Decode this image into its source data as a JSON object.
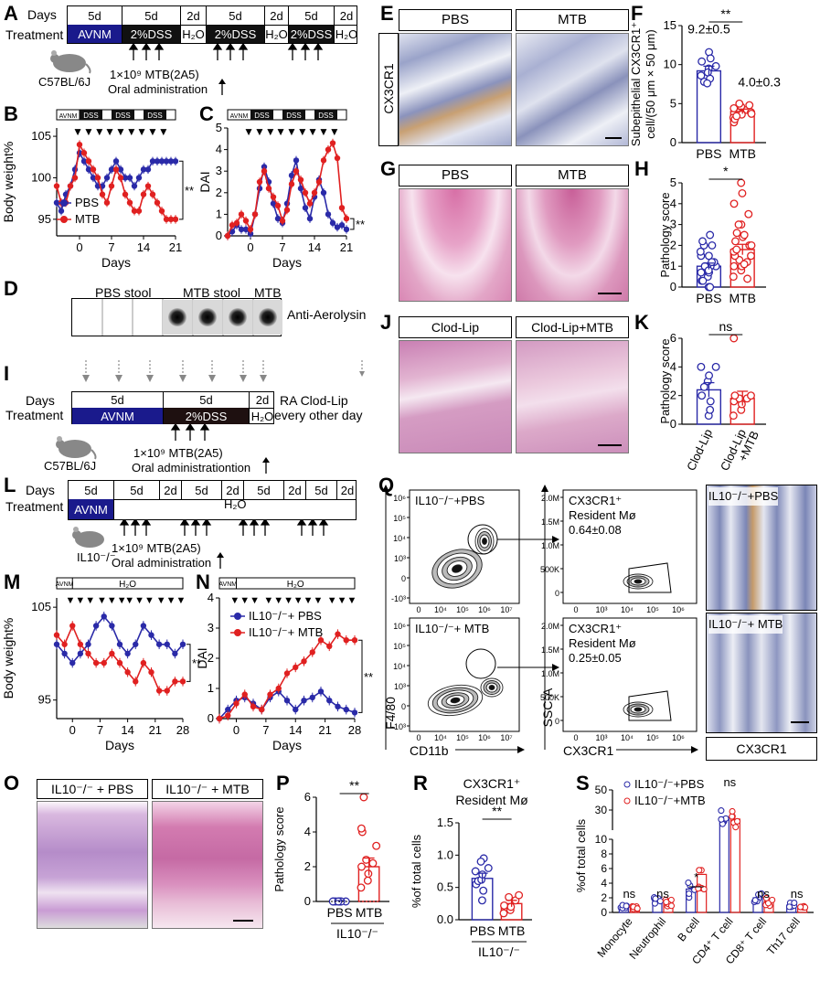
{
  "panels": {
    "A": "A",
    "B": "B",
    "C": "C",
    "D": "D",
    "E": "E",
    "F": "F",
    "G": "G",
    "H": "H",
    "I": "I",
    "J": "J",
    "K": "K",
    "L": "L",
    "M": "M",
    "N": "N",
    "O": "O",
    "P": "P",
    "Q": "Q",
    "R": "R",
    "S": "S"
  },
  "common": {
    "days": "Days",
    "treatment": "Treatment",
    "avnm": "AVNM",
    "dss2": "2%DSS",
    "h2o": "H₂O",
    "d5": "5d",
    "d2": "2d",
    "c57": "C57BL/6J",
    "mtb_dose": "1×10⁹ MTB(2A5)",
    "oral": "Oral administration",
    "oral_tion": "Oral administrationtion",
    "il10": "IL10⁻/⁻",
    "pbs": "PBS",
    "mtb": "MTB",
    "dss": "DSS",
    "ns": "ns",
    "sig2": "**",
    "sig1": "*"
  },
  "panelA": {
    "cells": [
      "5d",
      "5d",
      "2d",
      "5d",
      "2d",
      "5d",
      "2d"
    ],
    "treat": [
      "AVNM",
      "2%DSS",
      "H₂O",
      "2%DSS",
      "H₂O",
      "2%DSS",
      "H₂O"
    ]
  },
  "panelB": {
    "ylabel": "Body weight%",
    "xlabel": "Days",
    "yticks": [
      "95",
      "100",
      "105"
    ],
    "xticks": [
      "0",
      "7",
      "14",
      "21"
    ],
    "legend": [
      "PBS",
      "MTB"
    ],
    "sig": "**"
  },
  "panelC": {
    "ylabel": "DAI",
    "xlabel": "Days",
    "yticks": [
      "0",
      "1",
      "2",
      "3",
      "4",
      "5"
    ],
    "xticks": [
      "0",
      "7",
      "14",
      "21"
    ],
    "sig": "**"
  },
  "panelD": {
    "pbs_stool": "PBS stool",
    "mtb_stool": "MTB stool",
    "mtb": "MTB",
    "antibody": "Anti-Aerolysin"
  },
  "panelE": {
    "left": "PBS",
    "right": "MTB",
    "side": "CX3CR1"
  },
  "panelF": {
    "ylabel1": "Subepithelial CX3CR1⁺",
    "ylabel2": "cell/(50 μm × 50 μm)",
    "pbs_val": "9.2±0.5",
    "mtb_val": "4.0±0.3",
    "yticks": [
      "0",
      "5",
      "10",
      "15"
    ],
    "cats": [
      "PBS",
      "MTB"
    ],
    "sig": "**"
  },
  "panelG": {
    "left": "PBS",
    "right": "MTB"
  },
  "panelH": {
    "ylabel": "Pathology score",
    "yticks": [
      "0",
      "1",
      "2",
      "3",
      "4",
      "5"
    ],
    "cats": [
      "PBS",
      "MTB"
    ],
    "sig": "*"
  },
  "panelI": {
    "treat": [
      "AVNM",
      "2%DSS",
      "H₂O"
    ],
    "cells": [
      "5d",
      "5d",
      "2d"
    ],
    "ra": "RA Clod-Lip",
    "every": "every other day"
  },
  "panelJ": {
    "left": "Clod-Lip",
    "right": "Clod-Lip+MTB"
  },
  "panelK": {
    "ylabel": "Pathology score",
    "yticks": [
      "0",
      "2",
      "4",
      "6"
    ],
    "cats": [
      "Clod-Lip",
      "Clod-Lip\n+MTB"
    ],
    "cat1": "Clod-Lip",
    "cat2a": "Clod-Lip",
    "cat2b": "+MTB",
    "sig": "ns"
  },
  "panelL": {
    "cells": [
      "5d",
      "5d",
      "2d",
      "5d",
      "2d",
      "5d",
      "2d",
      "5d",
      "2d"
    ],
    "treat": [
      "AVNM",
      "H₂O"
    ]
  },
  "panelM": {
    "ylabel": "Body weight%",
    "xlabel": "Days",
    "yticks": [
      "95",
      "105"
    ],
    "xticks": [
      "0",
      "7",
      "14",
      "21",
      "28"
    ],
    "sig": "**",
    "bar": "H₂O",
    "avnm": "AVNM"
  },
  "panelN": {
    "ylabel": "DAI",
    "xlabel": "Days",
    "yticks": [
      "0",
      "1",
      "2",
      "3",
      "4"
    ],
    "xticks": [
      "0",
      "7",
      "14",
      "21",
      "28"
    ],
    "legend": [
      "IL10⁻/⁻+ PBS",
      "IL10⁻/⁻+ MTB"
    ],
    "sig": "**"
  },
  "panelO": {
    "left": "IL10⁻/⁻ + PBS",
    "right": "IL10⁻/⁻ + MTB"
  },
  "panelP": {
    "ylabel": "Pathology score",
    "yticks": [
      "0",
      "2",
      "4",
      "6"
    ],
    "cats": [
      "PBS",
      "MTB"
    ],
    "group": "IL10⁻/⁻",
    "sig": "**"
  },
  "panelQ": {
    "top_label": "IL10⁻/⁻+PBS",
    "bot_label": "IL10⁻/⁻+ MTB",
    "gate_title": "CX3CR1⁺",
    "gate_sub": "Resident Mø",
    "pbs_val": "0.64±0.08",
    "mtb_val": "0.25±0.05",
    "yaxis": "F4/80",
    "xaxis": "CD11b",
    "yaxis2": "SSC-A",
    "xaxis2": "CX3CR1",
    "ihc_label": "CX3CR1",
    "ticks_left": [
      "10⁶",
      "10⁵",
      "10⁴",
      "10³",
      "0",
      "-10³"
    ],
    "ticks_x": [
      "0",
      "10⁴",
      "10⁵",
      "10⁶",
      "10⁷"
    ],
    "ticks_ssc": [
      "2.0M",
      "1.5M",
      "1.0M",
      "500K",
      "0"
    ],
    "ticks_x2": [
      "0",
      "10³",
      "10⁴",
      "10⁵",
      "10⁶"
    ]
  },
  "panelR": {
    "title1": "CX3CR1⁺",
    "title2": "Resident Mø",
    "ylabel": "%of total cells",
    "yticks": [
      "0.0",
      "0.5",
      "1.0",
      "1.5"
    ],
    "cats": [
      "PBS",
      "MTB"
    ],
    "group": "IL10⁻/⁻",
    "sig": "**"
  },
  "panelS": {
    "ylabel": "%of total cells",
    "yticks": [
      "0",
      "2",
      "4",
      "6",
      "8",
      "10",
      "30",
      "50"
    ],
    "cats": [
      "Monocyte",
      "Neutrophil",
      "B cell",
      "CD4⁺ T cell",
      "CD8⁺ T cell",
      "Th17 cell"
    ],
    "legend": [
      "IL10⁻/⁻+PBS",
      "IL10⁻/⁻+MTB"
    ],
    "sigs": [
      "ns",
      "ns",
      "*",
      "ns",
      "ns",
      "ns"
    ]
  },
  "chart_data": [
    {
      "type": "bar",
      "panel": "F",
      "categories": [
        "PBS",
        "MTB"
      ],
      "values": [
        9.2,
        4.0
      ],
      "ylim": [
        0,
        15
      ],
      "ylabel": "Subepithelial CX3CR1⁺ cell/(50 μm × 50 μm)"
    },
    {
      "type": "bar",
      "panel": "H",
      "categories": [
        "PBS",
        "MTB"
      ],
      "values": [
        1.0,
        1.8
      ],
      "ylim": [
        0,
        5
      ],
      "ylabel": "Pathology score"
    },
    {
      "type": "bar",
      "panel": "K",
      "categories": [
        "Clod-Lip",
        "Clod-Lip+MTB"
      ],
      "values": [
        2.4,
        1.8
      ],
      "ylim": [
        0,
        6
      ],
      "ylabel": "Pathology score"
    },
    {
      "type": "bar",
      "panel": "P",
      "categories": [
        "PBS",
        "MTB"
      ],
      "values": [
        0.0,
        2.0
      ],
      "ylim": [
        0,
        6
      ],
      "ylabel": "Pathology score"
    },
    {
      "type": "bar",
      "panel": "R",
      "categories": [
        "PBS",
        "MTB"
      ],
      "values": [
        0.64,
        0.25
      ],
      "ylim": [
        0,
        1.5
      ],
      "ylabel": "%of total cells"
    },
    {
      "type": "bar",
      "panel": "S",
      "categories": [
        "Monocyte",
        "Neutrophil",
        "B cell",
        "CD4⁺ T cell",
        "CD8⁺ T cell",
        "Th17 cell"
      ],
      "series": [
        {
          "name": "IL10⁻/⁻+PBS",
          "values": [
            0.8,
            1.5,
            3.2,
            23,
            2.0,
            1.0
          ]
        },
        {
          "name": "IL10⁻/⁻+MTB",
          "values": [
            0.7,
            1.3,
            5.2,
            21,
            1.5,
            0.6
          ]
        }
      ]
    },
    {
      "type": "line",
      "panel": "B",
      "x": [
        -5,
        -4,
        -3,
        -2,
        -1,
        0,
        1,
        2,
        3,
        4,
        5,
        6,
        7,
        8,
        9,
        10,
        11,
        12,
        13,
        14,
        15,
        16,
        17,
        18,
        19,
        20,
        21
      ],
      "series": [
        {
          "name": "PBS",
          "values": [
            97,
            96,
            98,
            99,
            101,
            103,
            102,
            101,
            100,
            99,
            99,
            100,
            101,
            102,
            101,
            100,
            100,
            99,
            100,
            101,
            101,
            102,
            102,
            102,
            102,
            102,
            102
          ]
        },
        {
          "name": "MTB",
          "values": [
            99,
            97,
            97,
            99,
            100,
            104,
            103,
            102,
            101,
            100,
            98,
            97,
            99,
            101,
            100,
            98,
            97,
            96,
            96,
            98,
            99,
            98,
            97,
            96,
            95,
            95,
            95
          ]
        }
      ],
      "ylim": [
        95,
        106
      ],
      "ylabel": "Body weight%",
      "xlabel": "Days"
    },
    {
      "type": "line",
      "panel": "C",
      "x": [
        -5,
        -4,
        -3,
        -2,
        -1,
        0,
        1,
        2,
        3,
        4,
        5,
        6,
        7,
        8,
        9,
        10,
        11,
        12,
        13,
        14,
        15,
        16,
        17,
        18,
        19,
        20,
        21
      ],
      "series": [
        {
          "name": "PBS",
          "values": [
            0,
            0.2,
            0.5,
            0.3,
            0.3,
            0.1,
            1.0,
            2.2,
            3.2,
            2.5,
            1.5,
            0.8,
            0.6,
            1.5,
            2.8,
            3.5,
            2.2,
            1.3,
            0.8,
            1.8,
            2.6,
            2.0,
            1.0,
            0.6,
            0.4,
            0.5,
            0.3
          ]
        },
        {
          "name": "MTB",
          "values": [
            0,
            0.5,
            0.6,
            1.0,
            0.7,
            0.3,
            1.0,
            2.5,
            3.0,
            2.2,
            1.8,
            1.4,
            0.7,
            1.2,
            2.4,
            3.0,
            2.6,
            2.0,
            1.5,
            2.0,
            2.5,
            3.5,
            4.0,
            4.3,
            3.6,
            1.3,
            0.8
          ]
        }
      ],
      "ylim": [
        0,
        5
      ],
      "ylabel": "DAI",
      "xlabel": "Days"
    },
    {
      "type": "line",
      "panel": "M",
      "x": [
        -4,
        -2,
        0,
        2,
        4,
        6,
        8,
        10,
        12,
        14,
        16,
        18,
        20,
        22,
        24,
        26,
        28
      ],
      "series": [
        {
          "name": "PBS",
          "values": [
            101,
            100,
            99,
            100,
            101,
            103,
            104,
            103,
            101,
            100,
            101,
            103,
            102,
            101,
            101,
            100,
            101
          ]
        },
        {
          "name": "MTB",
          "values": [
            102,
            101,
            103,
            101,
            100,
            99,
            99,
            100,
            99,
            98,
            97,
            99,
            98,
            96,
            96,
            97,
            97
          ]
        }
      ],
      "ylim": [
        93,
        106
      ],
      "ylabel": "Body weight%",
      "xlabel": "Days"
    },
    {
      "type": "line",
      "panel": "N",
      "x": [
        -4,
        -2,
        0,
        2,
        4,
        6,
        8,
        10,
        12,
        14,
        16,
        18,
        20,
        22,
        24,
        26,
        28
      ],
      "series": [
        {
          "name": "IL10⁻/⁻+ PBS",
          "values": [
            0,
            0.3,
            0.6,
            0.7,
            0.5,
            0.3,
            0.7,
            0.9,
            0.6,
            0.3,
            0.6,
            0.7,
            0.9,
            0.6,
            0.4,
            0.3,
            0.2
          ]
        },
        {
          "name": "IL10⁻/⁻+ MTB",
          "values": [
            0,
            0.1,
            0.5,
            0.8,
            0.4,
            0.3,
            0.8,
            1.0,
            1.5,
            1.7,
            1.9,
            2.2,
            2.6,
            2.4,
            2.8,
            2.6,
            2.6
          ]
        }
      ],
      "ylim": [
        0,
        4
      ],
      "ylabel": "DAI",
      "xlabel": "Days"
    }
  ],
  "colors": {
    "blue": "#2a2aa8",
    "red": "#e02020",
    "navy": "#1a1a8c",
    "black": "#000000"
  }
}
